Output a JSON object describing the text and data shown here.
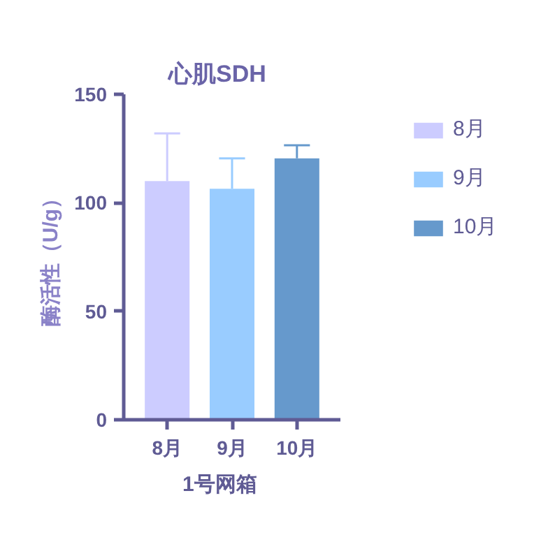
{
  "chart_data": {
    "type": "bar",
    "title": "心肌SDH",
    "xlabel": "1号网箱",
    "ylabel": "酶活性（U/g）",
    "categories": [
      "8月",
      "9月",
      "10月"
    ],
    "series": [
      {
        "name": "8月",
        "color": "#ccccff",
        "values": [
          110,
          null,
          null
        ],
        "errors": [
          22,
          null,
          null
        ]
      },
      {
        "name": "9月",
        "color": "#99ccff",
        "values": [
          null,
          106.5,
          null
        ],
        "errors": [
          null,
          14,
          null
        ]
      },
      {
        "name": "10月",
        "color": "#6699cc",
        "values": [
          null,
          null,
          120.5
        ],
        "errors": [
          null,
          null,
          6
        ]
      }
    ],
    "ylim": [
      0,
      150
    ],
    "yticks": [
      0,
      50,
      100,
      150
    ],
    "grid": false,
    "legend": "right"
  }
}
